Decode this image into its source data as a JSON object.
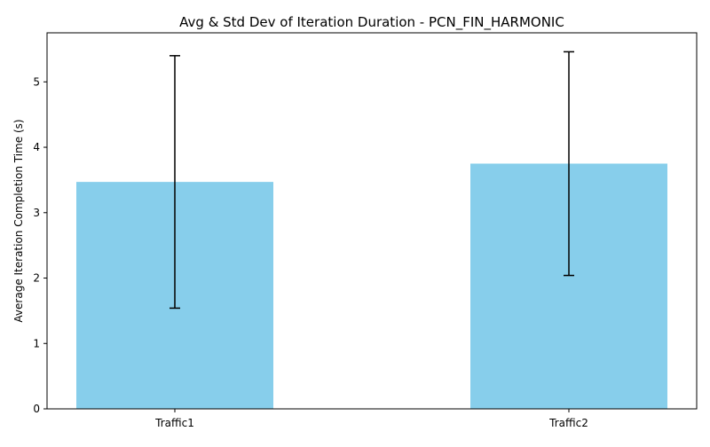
{
  "chart_data": {
    "type": "bar",
    "title": "Avg & Std Dev of Iteration Duration - PCN_FIN_HARMONIC",
    "xlabel": "",
    "ylabel": "Average Iteration Completion Time (s)",
    "categories": [
      "Traffic1",
      "Traffic2"
    ],
    "values": [
      3.47,
      3.75
    ],
    "error": [
      1.93,
      1.71
    ],
    "ylim": [
      0,
      5.75
    ],
    "yticks": [
      0,
      1,
      2,
      3,
      4,
      5
    ],
    "grid": false,
    "bar_color": "#87ceeb",
    "error_color": "#000000"
  }
}
